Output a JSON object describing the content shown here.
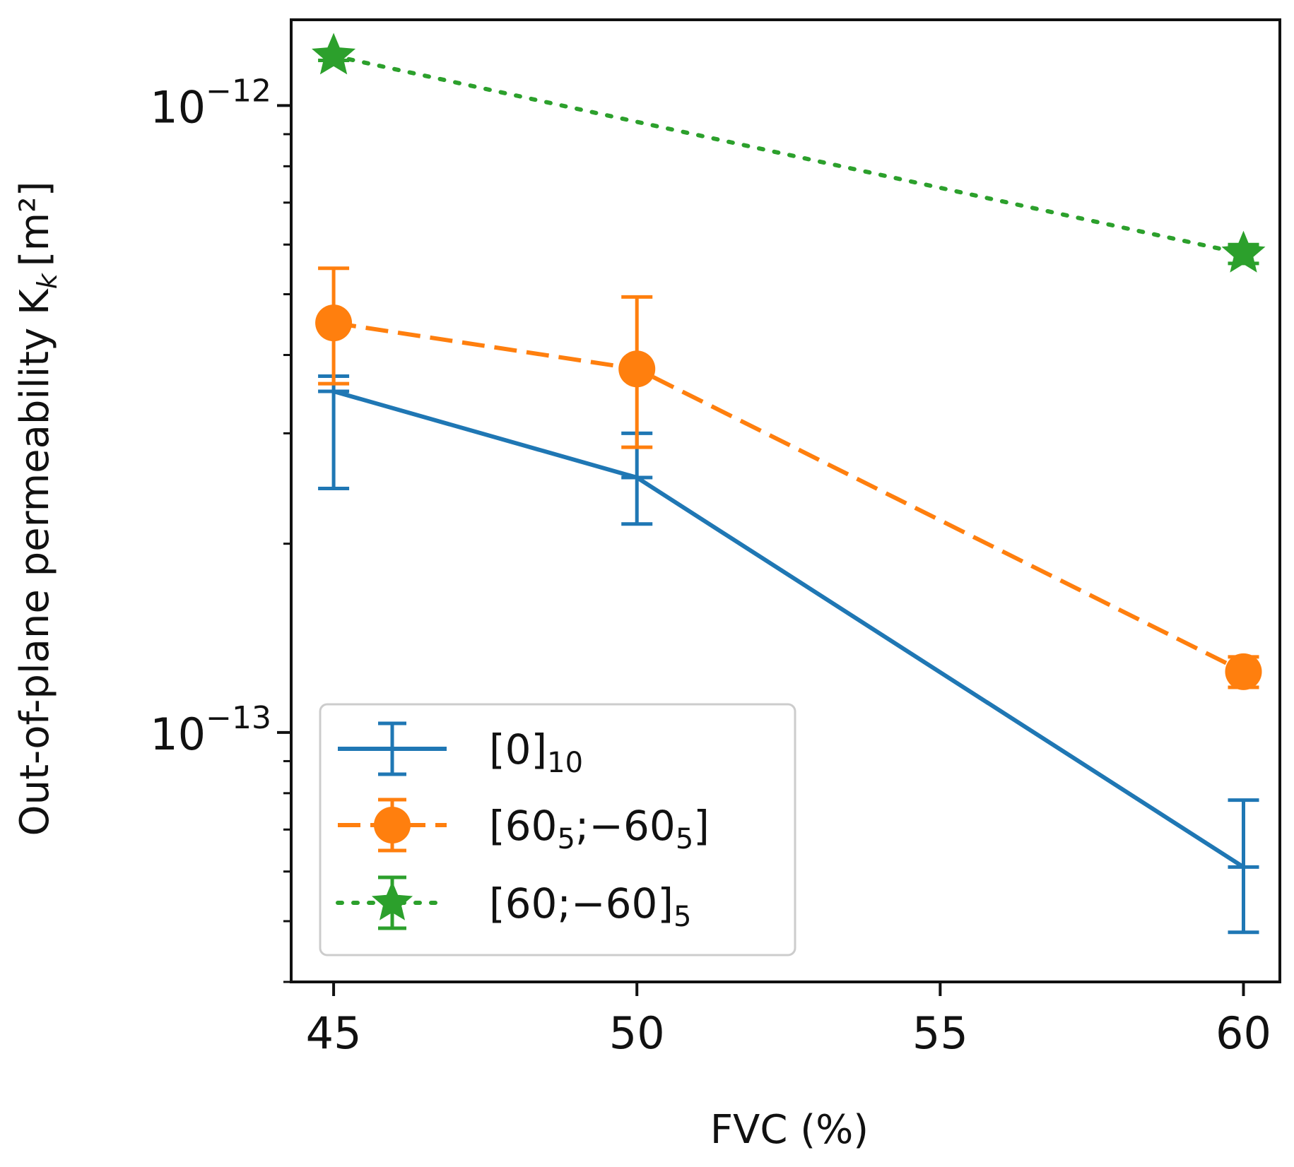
{
  "chart_data": {
    "type": "line",
    "title": "",
    "xlabel": "FVC (%)",
    "ylabel": "Out-of-plane permeability K",
    "ylabel_sub": "k",
    "ylabel_unit": "[m²]",
    "yscale": "log",
    "xlim": [
      44.3,
      60.6
    ],
    "ylim": [
      4e-14,
      1.37e-12
    ],
    "x_ticks": [
      45,
      50,
      55,
      60
    ],
    "x_tick_labels": [
      "45",
      "50",
      "55",
      "60"
    ],
    "y_ticks": [
      {
        "value": 1e-12,
        "base": "10",
        "exp": "−12"
      },
      {
        "value": 1e-13,
        "base": "10",
        "exp": "−13"
      }
    ],
    "x": [
      45,
      50,
      60
    ],
    "series": [
      {
        "name": "[0]10",
        "label_main": "[0]",
        "label_sub": "10",
        "color": "#1f77b4",
        "linestyle": "solid",
        "marker": "none",
        "x": [
          45,
          50,
          60
        ],
        "values": [
          3.5e-13,
          2.55e-13,
          6.1e-14
        ],
        "err_low": [
          2.45e-13,
          2.15e-13,
          4.8e-14
        ],
        "err_high": [
          3.7e-13,
          3e-13,
          7.8e-14
        ]
      },
      {
        "name": "[605;−605]",
        "label_parts": [
          "[60",
          "5",
          ";−60",
          "5",
          "]"
        ],
        "color": "#ff7f0e",
        "linestyle": "dashed",
        "marker": "circle",
        "x": [
          45,
          50,
          60
        ],
        "values": [
          4.5e-13,
          3.8e-13,
          1.25e-13
        ],
        "err_low": [
          3.6e-13,
          2.85e-13,
          1.18e-13
        ],
        "err_high": [
          5.5e-13,
          4.95e-13,
          1.32e-13
        ]
      },
      {
        "name": "[60;−60]5",
        "label_main": "[60;−60]",
        "label_sub": "5",
        "color": "#2ca02c",
        "linestyle": "dotted",
        "marker": "star",
        "x": [
          45,
          50,
          60
        ],
        "values": [
          1.2e-12,
          null,
          5.8e-13
        ],
        "err_low": [
          1.18e-12,
          null,
          5.6e-13
        ],
        "err_high": [
          1.22e-12,
          null,
          6e-13
        ]
      }
    ],
    "legend_position": "bottom-left",
    "grid": false
  }
}
